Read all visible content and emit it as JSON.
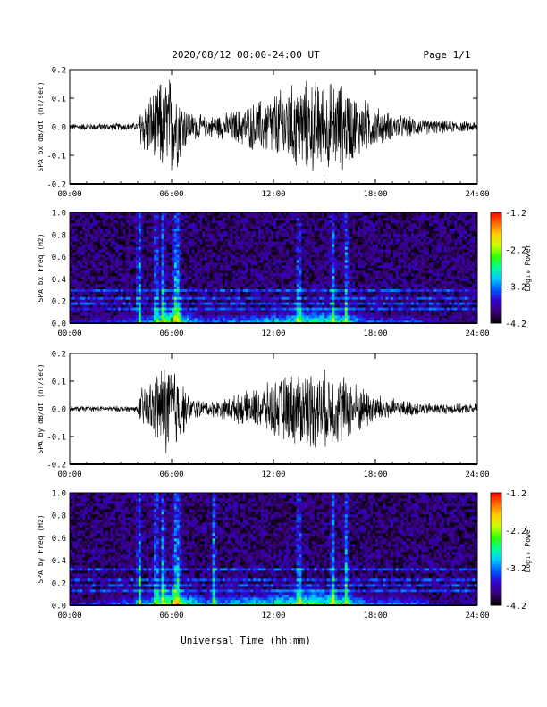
{
  "header": {
    "title": "2020/08/12  00:00-24:00 UT",
    "page": "Page 1/1"
  },
  "footer": {
    "xlabel": "Universal Time (hh:mm)"
  },
  "colors": {
    "background": "#ffffff",
    "trace": "#000000",
    "colormap": [
      "#000000",
      "#3a0070",
      "#3300cc",
      "#0055ff",
      "#00c8ff",
      "#00ff9a",
      "#33ff00",
      "#c8ff00",
      "#ffd000",
      "#ff6a00",
      "#ff0000"
    ]
  },
  "chart_data": [
    {
      "type": "line",
      "ylabel": "SPA bx dB/dt (nT/sec)",
      "ylim": [
        -0.2,
        0.2
      ],
      "yticks": [
        "-0.2",
        "-0.1",
        "0.0",
        "0.1",
        "0.2"
      ],
      "xlim": [
        0,
        24
      ],
      "xticks": [
        "00:00",
        "06:00",
        "12:00",
        "18:00",
        "24:00"
      ],
      "series": [
        {
          "x": [
            0,
            4,
            4.2,
            5.0,
            5.5,
            6.0,
            6.4,
            7,
            8,
            9,
            10,
            11,
            12,
            13,
            14,
            15,
            16,
            17,
            18,
            19,
            20,
            21,
            22,
            23,
            24
          ],
          "envelope": [
            0.012,
            0.015,
            0.09,
            0.15,
            0.2,
            0.2,
            0.15,
            0.06,
            0.04,
            0.05,
            0.07,
            0.1,
            0.13,
            0.16,
            0.18,
            0.18,
            0.17,
            0.12,
            0.08,
            0.05,
            0.04,
            0.03,
            0.025,
            0.02,
            0.02
          ]
        }
      ]
    },
    {
      "type": "heatmap",
      "ylabel": "SPA bx Freq (Hz)",
      "ylim": [
        0,
        1.0
      ],
      "yticks": [
        "0.0",
        "0.2",
        "0.4",
        "0.6",
        "0.8",
        "1.0"
      ],
      "xlim": [
        0,
        24
      ],
      "xticks": [
        "00:00",
        "06:00",
        "12:00",
        "18:00",
        "24:00"
      ],
      "colorbar": {
        "label": "Log₁₀ Power",
        "range": [
          -4.2,
          -1.2
        ],
        "ticks": [
          "-1.2",
          "-2.2",
          "-3.2",
          "-4.2"
        ]
      },
      "horizontal_lines_hz": [
        0.3,
        0.22,
        0.17,
        0.12
      ],
      "vertical_bursts_h": [
        4.1,
        5.1,
        5.5,
        6.2,
        6.4,
        13.5,
        15.5,
        16.3
      ],
      "low_freq_activity": {
        "x": [
          0,
          4,
          6,
          8,
          12,
          14,
          16,
          18,
          20,
          22,
          24
        ],
        "power": [
          -3.6,
          -3.3,
          -2.4,
          -3.2,
          -2.9,
          -2.6,
          -2.7,
          -3.3,
          -3.2,
          -3.7,
          -3.8
        ]
      }
    },
    {
      "type": "line",
      "ylabel": "SPA by dB/dt (nT/sec)",
      "ylim": [
        -0.2,
        0.2
      ],
      "yticks": [
        "-0.2",
        "-0.1",
        "0.0",
        "0.1",
        "0.2"
      ],
      "xlim": [
        0,
        24
      ],
      "xticks": [
        "00:00",
        "06:00",
        "12:00",
        "18:00",
        "24:00"
      ],
      "series": [
        {
          "x": [
            0,
            4,
            4.2,
            5.0,
            5.5,
            6.0,
            6.4,
            7,
            8,
            9,
            10,
            11,
            12,
            13,
            14,
            15,
            16,
            17,
            18,
            19,
            20,
            21,
            22,
            23,
            24
          ],
          "envelope": [
            0.01,
            0.012,
            0.08,
            0.13,
            0.18,
            0.2,
            0.15,
            0.05,
            0.03,
            0.04,
            0.06,
            0.08,
            0.11,
            0.14,
            0.16,
            0.15,
            0.14,
            0.1,
            0.06,
            0.04,
            0.03,
            0.025,
            0.02,
            0.02,
            0.02
          ]
        }
      ]
    },
    {
      "type": "heatmap",
      "ylabel": "SPA by Freq (Hz)",
      "ylim": [
        0,
        1.0
      ],
      "yticks": [
        "0.0",
        "0.2",
        "0.4",
        "0.6",
        "0.8",
        "1.0"
      ],
      "xlim": [
        0,
        24
      ],
      "xticks": [
        "00:00",
        "06:00",
        "12:00",
        "18:00",
        "24:00"
      ],
      "colorbar": {
        "label": "Log₁₀ Power",
        "range": [
          -4.2,
          -1.2
        ],
        "ticks": [
          "-1.2",
          "-2.2",
          "-3.2",
          "-4.2"
        ]
      },
      "horizontal_lines_hz": [
        0.32,
        0.22,
        0.17,
        0.12
      ],
      "vertical_bursts_h": [
        4.1,
        5.1,
        5.5,
        6.2,
        6.4,
        8.5,
        13.5,
        15.5,
        16.3
      ],
      "low_freq_activity": {
        "x": [
          0,
          4,
          6,
          8,
          12,
          14,
          16,
          18,
          20,
          22,
          24
        ],
        "power": [
          -3.6,
          -3.1,
          -2.3,
          -3.0,
          -2.7,
          -2.4,
          -2.6,
          -3.2,
          -3.1,
          -3.6,
          -3.8
        ]
      }
    }
  ]
}
